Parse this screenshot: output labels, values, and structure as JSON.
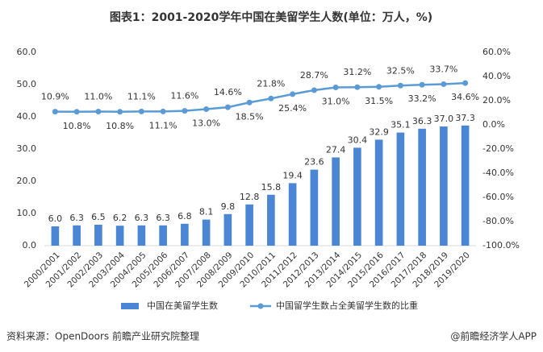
{
  "chart_data": {
    "type": "bar",
    "title": "图表1：2001-2020学年中国在美留学生人数(单位：万人，%)",
    "source": "资料来源：OpenDoors 前瞻产业研究院整理",
    "credit": "@前瞻经济学人APP",
    "categories": [
      "2000/2001",
      "2001/2002",
      "2002/2003",
      "2003/2004",
      "2004/2005",
      "2005/2006",
      "2006/2007",
      "2007/2008",
      "2008/2009",
      "2009/2010",
      "2010/2011",
      "2011/2012",
      "2012/2013",
      "2013/2014",
      "2014/2015",
      "2015/2016",
      "2016/2017",
      "2017/2018",
      "2018/2019",
      "2019/2020"
    ],
    "series": [
      {
        "name": "中国在美留学生数",
        "type": "bar",
        "color": "#4a86d4",
        "values": [
          6.0,
          6.3,
          6.5,
          6.2,
          6.3,
          6.3,
          6.8,
          8.1,
          9.8,
          12.8,
          15.8,
          19.4,
          23.6,
          27.4,
          30.4,
          32.9,
          35.1,
          36.3,
          37.0,
          37.3
        ],
        "value_labels": [
          "6.0",
          "6.3",
          "6.5",
          "6.2",
          "6.3",
          "6.3",
          "6.8",
          "8.1",
          "9.8",
          "12.8",
          "15.8",
          "19.4",
          "23.6",
          "27.4",
          "30.4",
          "32.9",
          "35.1",
          "36.3",
          "37.0",
          "37.3"
        ]
      },
      {
        "name": "中国留学生数占全美留学生数的比重",
        "type": "line",
        "axis": "y2",
        "color": "#5b9bd5",
        "values": [
          10.9,
          10.8,
          11.0,
          10.8,
          11.1,
          11.1,
          11.6,
          13.0,
          14.6,
          18.5,
          21.8,
          25.4,
          28.7,
          31.0,
          31.2,
          31.5,
          32.5,
          33.2,
          33.7,
          34.6
        ],
        "value_labels": [
          "10.9%",
          "10.8%",
          "11.0%",
          "10.8%",
          "11.1%",
          "11.1%",
          "11.6%",
          "13.0%",
          "14.6%",
          "18.5%",
          "21.8%",
          "25.4%",
          "28.7%",
          "31.0%",
          "31.2%",
          "31.5%",
          "32.5%",
          "33.2%",
          "33.7%",
          "34.6%"
        ]
      }
    ],
    "ylim": [
      0,
      60
    ],
    "yticks": [
      {
        "value": 0,
        "label": "0.0"
      },
      {
        "value": 10,
        "label": "10.0"
      },
      {
        "value": 20,
        "label": "20.0"
      },
      {
        "value": 30,
        "label": "30.0"
      },
      {
        "value": 40,
        "label": "40.0"
      },
      {
        "value": 50,
        "label": "50.0"
      },
      {
        "value": 60,
        "label": "60.0"
      }
    ],
    "y2lim": [
      -100,
      60
    ],
    "y2ticks": [
      {
        "value": -100,
        "label": "-100.0%"
      },
      {
        "value": -80,
        "label": "-80.0%"
      },
      {
        "value": -60,
        "label": "-60.0%"
      },
      {
        "value": -40,
        "label": "-40.0%"
      },
      {
        "value": -20,
        "label": "-20.0%"
      },
      {
        "value": 0,
        "label": "0.0%"
      },
      {
        "value": 20,
        "label": "20.0%"
      },
      {
        "value": 40,
        "label": "40.0%"
      },
      {
        "value": 60,
        "label": "60.0%"
      }
    ],
    "legend": "bottom"
  }
}
